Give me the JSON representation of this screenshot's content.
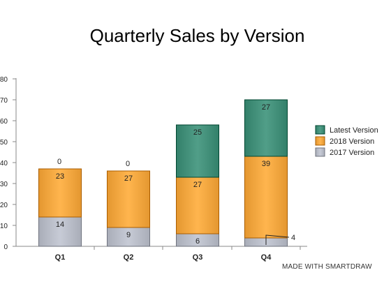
{
  "chart_data": {
    "type": "bar",
    "stacked": true,
    "title": "Quarterly Sales by Version",
    "categories": [
      "Q1",
      "Q2",
      "Q3",
      "Q4"
    ],
    "series": [
      {
        "name": "2017 Version",
        "values": [
          14,
          9,
          6,
          4
        ],
        "color": "#b5b9c4"
      },
      {
        "name": "2018 Version",
        "values": [
          23,
          27,
          27,
          39
        ],
        "color": "#f0a33c"
      },
      {
        "name": "Latest Version",
        "values": [
          0,
          0,
          25,
          27
        ],
        "color": "#3f8c76"
      }
    ],
    "ylim": [
      0,
      80
    ],
    "yticks": [
      0,
      10,
      20,
      30,
      40,
      50,
      60,
      70,
      80
    ],
    "xlabel": "",
    "ylabel": "",
    "grid": false,
    "legend_position": "right",
    "legend_order": [
      "Latest Version",
      "2018 Version",
      "2017 Version"
    ]
  },
  "footer": "MADE WITH SMARTDRAW"
}
